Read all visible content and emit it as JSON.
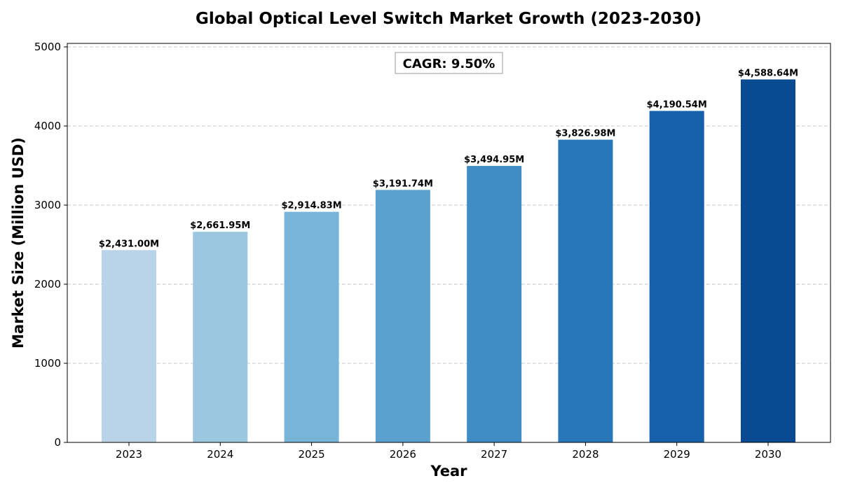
{
  "chart_data": {
    "type": "bar",
    "title": "Global Optical Level Switch Market Growth (2023-2030)",
    "xlabel": "Year",
    "ylabel": "Market Size (Million USD)",
    "categories": [
      "2023",
      "2024",
      "2025",
      "2026",
      "2027",
      "2028",
      "2029",
      "2030"
    ],
    "values": [
      2431.0,
      2661.95,
      2914.83,
      3191.74,
      3494.95,
      3826.98,
      4190.54,
      4588.64
    ],
    "value_labels": [
      "$2,431.00M",
      "$2,661.95M",
      "$2,914.83M",
      "$3,191.74M",
      "$3,494.95M",
      "$3,826.98M",
      "$4,190.54M",
      "$4,588.64M"
    ],
    "bar_colors": [
      "#b9d4e9",
      "#9bc7df",
      "#78b4d8",
      "#5ba1cf",
      "#3f8dc4",
      "#2877b9",
      "#1460aa",
      "#084b92"
    ],
    "ylim": [
      0,
      5000
    ],
    "yticks": [
      "0",
      "1000",
      "2000",
      "3000",
      "4000",
      "5000"
    ],
    "ytick_values": [
      0,
      1000,
      2000,
      3000,
      4000,
      5000
    ],
    "grid": true,
    "annotation": "CAGR: 9.50%"
  }
}
